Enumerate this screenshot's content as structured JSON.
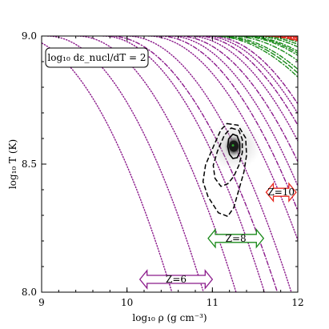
{
  "chart_data": {
    "type": "contour",
    "title": "",
    "xlabel": "log₁₀ ρ  (g cm⁻³)",
    "ylabel": "log₁₀ T  (K)",
    "xlim": [
      9,
      12
    ],
    "ylim": [
      8.0,
      9.0
    ],
    "x_ticks": [
      "9",
      "10",
      "11",
      "12"
    ],
    "y_ticks": [
      "8.0",
      "8.5",
      "9.0"
    ],
    "grid": false,
    "annotation_box": "log₁₀ dε_nucl/dT = 2",
    "colors": {
      "Z=6": "#8b1a8b",
      "Z=8": "#1a8a1a",
      "Z=10": "#e8281e",
      "density": "#000000"
    },
    "regions": [
      {
        "label": "Z=6",
        "x_range": [
          10.15,
          11.0
        ],
        "y": 8.05,
        "color": "#8b1a8b"
      },
      {
        "label": "Z=8",
        "x_range": [
          10.95,
          11.6
        ],
        "y": 8.21,
        "color": "#1a8a1a"
      },
      {
        "label": "Z=10",
        "x_range": [
          11.63,
          11.98
        ],
        "y": 8.39,
        "color": "#e8281e"
      }
    ],
    "series": [
      {
        "name": "Z=6",
        "style": "dotted",
        "lines": [
          {
            "x_base": 8.7,
            "ymax": 9.0,
            "k": 0.3
          },
          {
            "x_base": 9.07,
            "ymax": 9.0,
            "k": 0.3
          },
          {
            "x_base": 9.42,
            "ymax": 9.0,
            "k": 0.29
          },
          {
            "x_base": 9.72,
            "ymax": 9.0,
            "k": 0.28
          },
          {
            "x_base": 10.0,
            "ymax": 9.0,
            "k": 0.27
          },
          {
            "x_base": 10.25,
            "ymax": 9.0,
            "k": 0.26
          },
          {
            "x_base": 10.5,
            "ymax": 9.0,
            "k": 0.26
          },
          {
            "x_base": 10.72,
            "ymax": 9.0,
            "k": 0.25
          },
          {
            "x_base": 10.9,
            "ymax": 9.0,
            "k": 0.25
          }
        ]
      },
      {
        "name": "Z=6",
        "style": "dashdot",
        "lines": [
          {
            "x_base": 9.8,
            "ymax": 9.0,
            "k": 0.26
          },
          {
            "x_base": 10.38,
            "ymax": 9.0,
            "k": 0.26
          },
          {
            "x_base": 10.6,
            "ymax": 9.0,
            "k": 0.25
          },
          {
            "x_base": 10.82,
            "ymax": 9.0,
            "k": 0.25
          },
          {
            "x_base": 10.97,
            "ymax": 9.0,
            "k": 0.25
          }
        ]
      },
      {
        "name": "Z=8",
        "style": "dashdot",
        "lines": [
          {
            "x_base": 11.0,
            "ymax": 9.0,
            "k": 0.16
          },
          {
            "x_base": 11.1,
            "ymax": 9.0,
            "k": 0.16
          },
          {
            "x_base": 11.2,
            "ymax": 9.0,
            "k": 0.15
          },
          {
            "x_base": 11.29,
            "ymax": 9.0,
            "k": 0.15
          },
          {
            "x_base": 11.37,
            "ymax": 9.0,
            "k": 0.15
          },
          {
            "x_base": 11.45,
            "ymax": 9.0,
            "k": 0.14
          },
          {
            "x_base": 11.52,
            "ymax": 9.0,
            "k": 0.14
          },
          {
            "x_base": 11.59,
            "ymax": 9.0,
            "k": 0.14
          }
        ]
      },
      {
        "name": "Z=8",
        "style": "dashed",
        "lines": [
          {
            "x_base": 11.05,
            "ymax": 9.0,
            "k": 0.16
          },
          {
            "x_base": 11.33,
            "ymax": 9.0,
            "k": 0.15
          }
        ]
      },
      {
        "name": "Z=10",
        "style": "dashdot",
        "lines": [
          {
            "x_base": 11.6,
            "ymax": 9.0,
            "k": 0.12
          },
          {
            "x_base": 11.67,
            "ymax": 9.0,
            "k": 0.12
          },
          {
            "x_base": 11.74,
            "ymax": 9.0,
            "k": 0.12
          },
          {
            "x_base": 11.8,
            "ymax": 9.0,
            "k": 0.11
          },
          {
            "x_base": 11.86,
            "ymax": 9.0,
            "k": 0.11
          },
          {
            "x_base": 11.92,
            "ymax": 9.0,
            "k": 0.11
          }
        ]
      },
      {
        "name": "Z=10",
        "style": "dashed",
        "lines": [
          {
            "x_base": 11.63,
            "ymax": 9.0,
            "k": 0.12
          }
        ]
      },
      {
        "name": "Z=10",
        "style": "dotted",
        "lines": [
          {
            "x_base": 11.97,
            "ymax": 9.0,
            "k": 0.11
          }
        ]
      }
    ],
    "density_contours": [
      {
        "level": "outer",
        "style": "dashed",
        "points": [
          [
            11.17,
            8.658
          ],
          [
            11.3,
            8.652
          ],
          [
            11.39,
            8.602
          ],
          [
            11.4,
            8.535
          ],
          [
            11.37,
            8.47
          ],
          [
            11.31,
            8.4
          ],
          [
            11.25,
            8.33
          ],
          [
            11.18,
            8.296
          ],
          [
            11.07,
            8.31
          ],
          [
            10.95,
            8.372
          ],
          [
            10.89,
            8.432
          ],
          [
            10.92,
            8.497
          ],
          [
            11.02,
            8.575
          ],
          [
            11.1,
            8.634
          ]
        ]
      },
      {
        "level": "middle",
        "style": "dashed",
        "points": [
          [
            11.22,
            8.641
          ],
          [
            11.31,
            8.632
          ],
          [
            11.35,
            8.596
          ],
          [
            11.35,
            8.545
          ],
          [
            11.31,
            8.495
          ],
          [
            11.25,
            8.452
          ],
          [
            11.18,
            8.423
          ],
          [
            11.1,
            8.413
          ],
          [
            11.03,
            8.445
          ],
          [
            11.01,
            8.495
          ],
          [
            11.06,
            8.551
          ],
          [
            11.14,
            8.613
          ]
        ]
      },
      {
        "level": "inner",
        "style": "solid",
        "points": [
          [
            11.24,
            8.617
          ],
          [
            11.29,
            8.61
          ],
          [
            11.32,
            8.582
          ],
          [
            11.32,
            8.545
          ],
          [
            11.29,
            8.525
          ],
          [
            11.24,
            8.522
          ],
          [
            11.2,
            8.538
          ],
          [
            11.18,
            8.568
          ],
          [
            11.19,
            8.598
          ]
        ]
      }
    ],
    "peak": {
      "x": 11.25,
      "y": 8.57
    }
  }
}
